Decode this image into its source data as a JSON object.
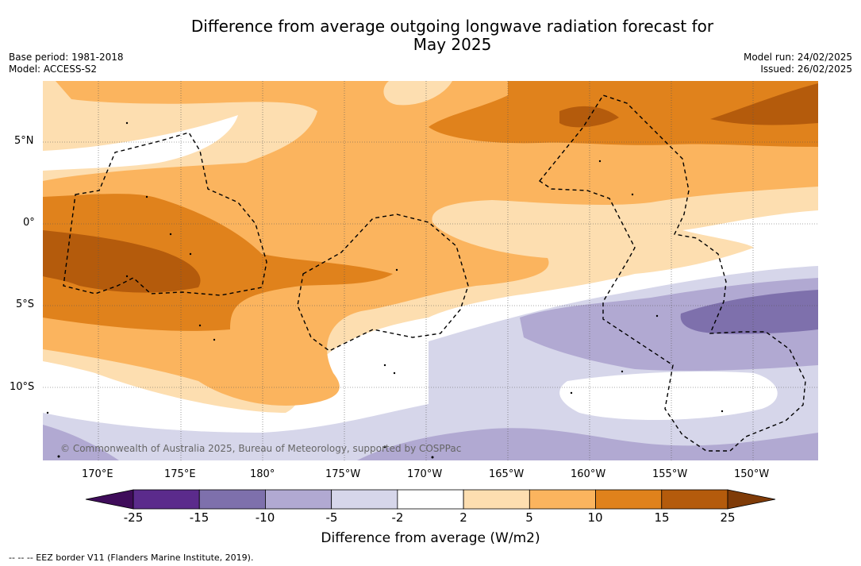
{
  "header": {
    "title_line1": "Difference from average outgoing longwave radiation forecast for",
    "title_line2": "May 2025",
    "base_period": "Base period: 1981-2018",
    "model": "Model: ACCESS-S2",
    "model_run": "Model run: 24/02/2025",
    "issued": "Issued: 26/02/2025"
  },
  "map": {
    "latitude_labels": [
      "5°N",
      "0°",
      "5°S",
      "10°S"
    ],
    "longitude_labels": [
      "170°E",
      "175°E",
      "180°",
      "175°W",
      "170°W",
      "165°W",
      "160°W",
      "155°W",
      "150°W"
    ],
    "copyright": "© Commonwealth of Australia 2025, Bureau of Meteorology, supported by COSPPac"
  },
  "colorbar": {
    "ticks": [
      "-25",
      "-15",
      "-10",
      "-5",
      "-2",
      "2",
      "5",
      "10",
      "15",
      "25"
    ],
    "colors": [
      "#3f0c5a",
      "#5b2b8c",
      "#7e70ac",
      "#b1a9d2",
      "#d6d6ea",
      "#ffffff",
      "#fddeb0",
      "#fbb45e",
      "#e0821c",
      "#b45b0c",
      "#7f3b08"
    ],
    "label": "Difference from average (W/m2)"
  },
  "legend": {
    "eez_border": "-- -- -- EEZ border V11 (Flanders Marine Institute, 2019)."
  }
}
